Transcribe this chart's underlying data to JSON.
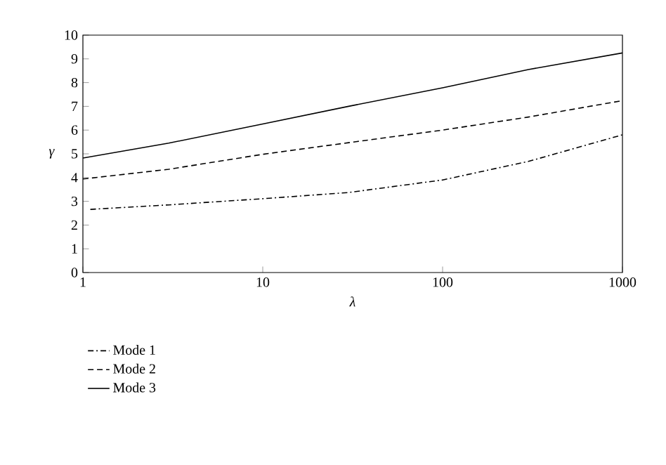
{
  "chart_data": {
    "type": "line",
    "xlabel": "λ",
    "ylabel": "γ",
    "log": "x",
    "xlim": [
      1,
      1000
    ],
    "xticks": [
      1,
      10,
      100,
      1000
    ],
    "ylim": [
      0,
      10
    ],
    "yticks": [
      0,
      1,
      2,
      3,
      4,
      5,
      6,
      7,
      8,
      9,
      10
    ],
    "legend": "bottom left",
    "grid": false,
    "series": [
      {
        "name": "Mode 1",
        "color": "#000000",
        "line_style": "dashdot",
        "x": [
          1.1,
          3,
          10,
          30,
          100,
          300,
          1000
        ],
        "values": [
          2.66,
          2.85,
          3.11,
          3.37,
          3.9,
          4.68,
          5.8
        ]
      },
      {
        "name": "Mode 2",
        "color": "#000000",
        "line_style": "dashed",
        "x": [
          1,
          3,
          10,
          30,
          100,
          300,
          1000
        ],
        "values": [
          3.94,
          4.35,
          4.98,
          5.47,
          6.0,
          6.55,
          7.24
        ]
      },
      {
        "name": "Mode 3",
        "color": "#000000",
        "line_style": "solid",
        "x": [
          1,
          3,
          10,
          30,
          100,
          300,
          1000
        ],
        "values": [
          4.82,
          5.45,
          6.26,
          7.0,
          7.78,
          8.55,
          9.25
        ]
      }
    ]
  }
}
